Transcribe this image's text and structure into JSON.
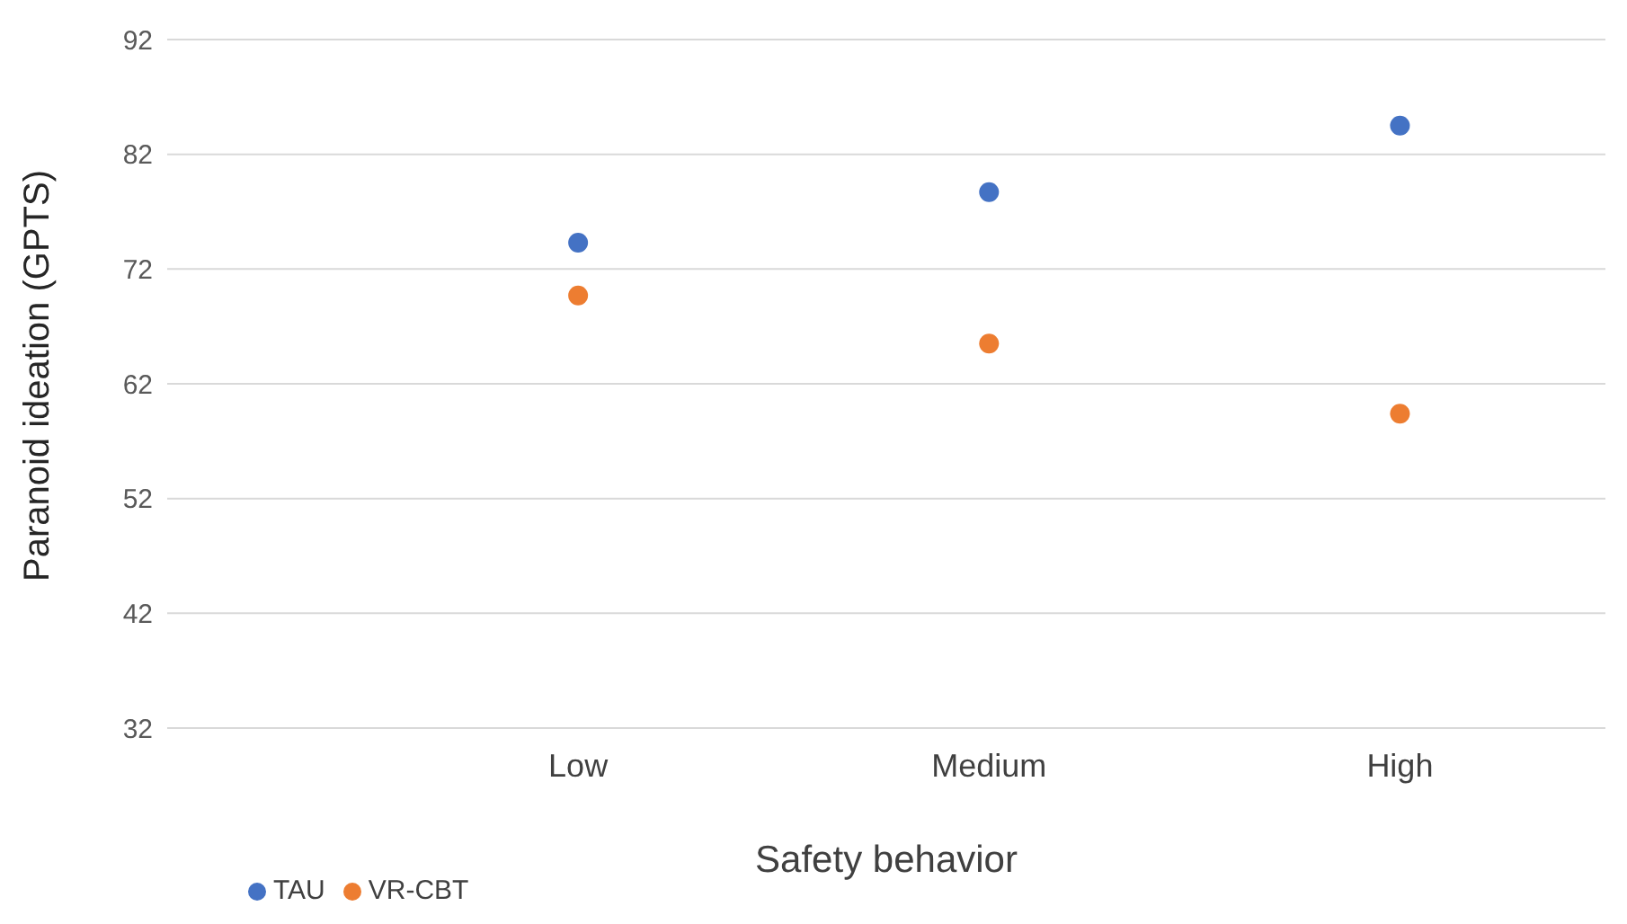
{
  "chart_data": {
    "type": "scatter",
    "xlabel": "Safety behavior",
    "ylabel": "Paranoid ideation (GPTS)",
    "categories": [
      "Low",
      "Medium",
      "High"
    ],
    "series": [
      {
        "name": "TAU",
        "color": "#4472c4",
        "values": [
          74.3,
          78.7,
          84.5
        ]
      },
      {
        "name": "VR-CBT",
        "color": "#ed7d31",
        "values": [
          69.7,
          65.5,
          59.4
        ]
      }
    ],
    "ylim": [
      32,
      92
    ],
    "yticks": [
      32,
      42,
      52,
      62,
      72,
      82,
      92
    ],
    "grid": "y",
    "legend": "bottom left",
    "marker": "circle"
  }
}
